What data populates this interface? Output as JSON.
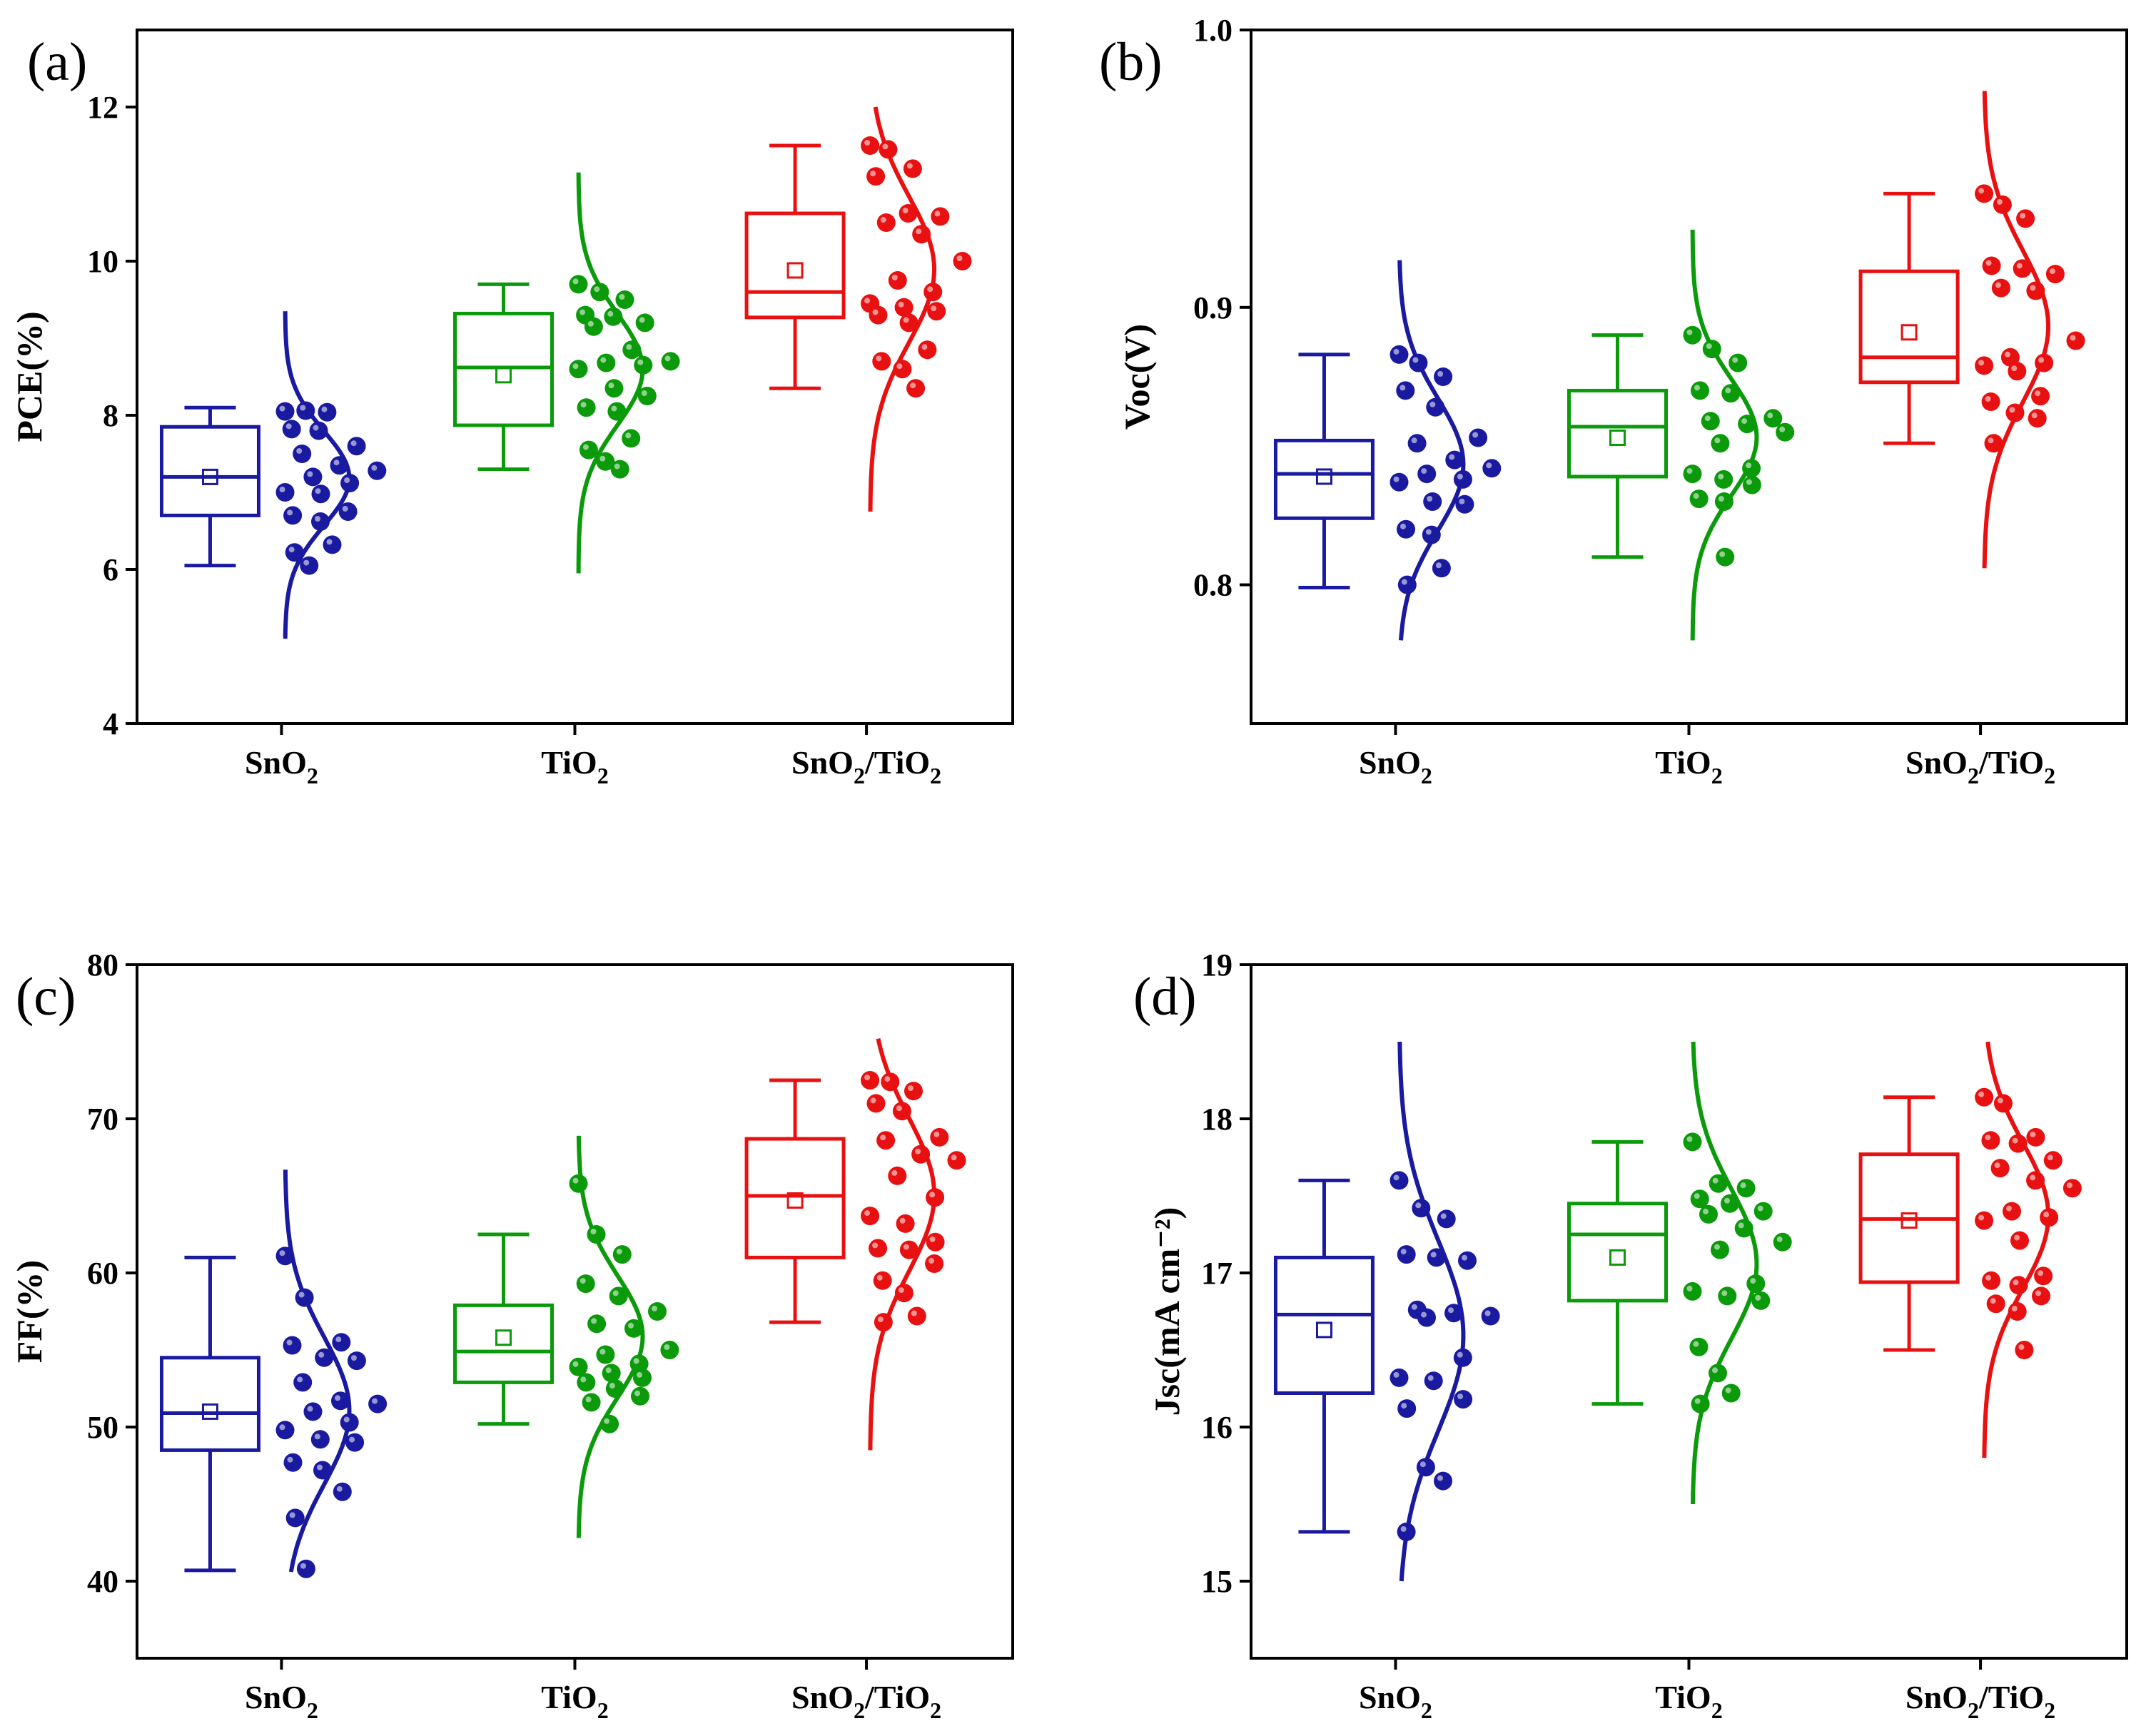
{
  "figure": {
    "panels": [
      "a",
      "b",
      "c",
      "d"
    ]
  },
  "chart_data": [
    {
      "panel": "(a)",
      "type": "box",
      "ylabel": "PCE(%)",
      "ylim": [
        4,
        13
      ],
      "yticks": [
        "4",
        "6",
        "8",
        "10",
        "12"
      ],
      "ytick_values": [
        4,
        6,
        8,
        10,
        12
      ],
      "categories": [
        {
          "label": "SnO",
          "sub": "2",
          "rest": ""
        },
        {
          "label": "TiO",
          "sub": "2",
          "rest": ""
        },
        {
          "label": "SnO",
          "sub": "2",
          "rest": "/TiO",
          "sub2": "2"
        }
      ],
      "series": [
        {
          "name": "SnO2",
          "color": "#1a1aa0",
          "min": 6.05,
          "q1": 6.7,
          "median": 7.2,
          "q3": 7.85,
          "max": 8.1,
          "mean": 7.2,
          "curve_range": [
            5.1,
            9.35
          ],
          "points": [
            8.05,
            8.06,
            8.04,
            7.82,
            7.8,
            7.6,
            7.5,
            7.35,
            7.28,
            7.2,
            7.12,
            7.0,
            6.98,
            6.75,
            6.7,
            6.62,
            6.32,
            6.22,
            6.05
          ]
        },
        {
          "name": "TiO2",
          "color": "#0a9a0a",
          "min": 7.3,
          "q1": 7.87,
          "median": 8.62,
          "q3": 9.32,
          "max": 9.7,
          "mean": 8.52,
          "curve_range": [
            5.95,
            11.15
          ],
          "points": [
            9.7,
            9.6,
            9.5,
            9.3,
            9.28,
            9.2,
            9.15,
            8.85,
            8.7,
            8.68,
            8.65,
            8.6,
            8.35,
            8.25,
            8.1,
            8.05,
            7.7,
            7.55,
            7.4,
            7.3
          ]
        },
        {
          "name": "SnO2/TiO2",
          "color": "#e81010",
          "min": 8.35,
          "q1": 9.27,
          "median": 9.6,
          "q3": 10.62,
          "max": 11.5,
          "mean": 9.88,
          "curve_range": [
            6.75,
            12.0
          ],
          "points": [
            11.5,
            11.45,
            11.2,
            11.1,
            10.62,
            10.58,
            10.5,
            10.35,
            10.0,
            9.75,
            9.6,
            9.45,
            9.4,
            9.35,
            9.3,
            9.2,
            8.85,
            8.7,
            8.6,
            8.35
          ]
        }
      ]
    },
    {
      "panel": "(b)",
      "type": "box",
      "ylabel": "Voc(V)",
      "ylim": [
        0.75,
        1.0
      ],
      "yticks": [
        "0.8",
        "0.9",
        "1.0"
      ],
      "ytick_values": [
        0.8,
        0.9,
        1.0
      ],
      "categories": [
        {
          "label": "SnO",
          "sub": "2",
          "rest": ""
        },
        {
          "label": "TiO",
          "sub": "2",
          "rest": ""
        },
        {
          "label": "SnO",
          "sub": "2",
          "rest": "/TiO",
          "sub2": "2"
        }
      ],
      "series": [
        {
          "name": "SnO2",
          "color": "#1a1aa0",
          "min": 0.799,
          "q1": 0.824,
          "median": 0.84,
          "q3": 0.852,
          "max": 0.883,
          "mean": 0.839,
          "curve_range": [
            0.78,
            0.917
          ],
          "points": [
            0.883,
            0.88,
            0.875,
            0.87,
            0.864,
            0.853,
            0.851,
            0.845,
            0.842,
            0.84,
            0.838,
            0.837,
            0.83,
            0.829,
            0.82,
            0.818,
            0.806,
            0.8
          ]
        },
        {
          "name": "TiO2",
          "color": "#0a9a0a",
          "min": 0.81,
          "q1": 0.839,
          "median": 0.857,
          "q3": 0.87,
          "max": 0.89,
          "mean": 0.853,
          "curve_range": [
            0.78,
            0.928
          ],
          "points": [
            0.89,
            0.885,
            0.88,
            0.87,
            0.869,
            0.86,
            0.859,
            0.858,
            0.855,
            0.851,
            0.842,
            0.84,
            0.838,
            0.836,
            0.831,
            0.83,
            0.81
          ]
        },
        {
          "name": "SnO2/TiO2",
          "color": "#e81010",
          "min": 0.851,
          "q1": 0.873,
          "median": 0.882,
          "q3": 0.913,
          "max": 0.941,
          "mean": 0.891,
          "curve_range": [
            0.806,
            0.978
          ],
          "points": [
            0.941,
            0.937,
            0.932,
            0.915,
            0.914,
            0.912,
            0.907,
            0.906,
            0.888,
            0.882,
            0.88,
            0.879,
            0.877,
            0.868,
            0.866,
            0.862,
            0.86,
            0.851
          ]
        }
      ]
    },
    {
      "panel": "(c)",
      "type": "box",
      "ylabel": "FF(%)",
      "ylim": [
        35,
        80
      ],
      "yticks": [
        "40",
        "50",
        "60",
        "70",
        "80"
      ],
      "ytick_values": [
        40,
        50,
        60,
        70,
        80
      ],
      "categories": [
        {
          "label": "SnO",
          "sub": "2",
          "rest": ""
        },
        {
          "label": "TiO",
          "sub": "2",
          "rest": ""
        },
        {
          "label": "SnO",
          "sub": "2",
          "rest": "/TiO",
          "sub2": "2"
        }
      ],
      "series": [
        {
          "name": "SnO2",
          "color": "#1a1aa0",
          "min": 40.7,
          "q1": 48.5,
          "median": 50.9,
          "q3": 54.5,
          "max": 61.0,
          "mean": 51.0,
          "curve_range": [
            40.6,
            66.7
          ],
          "points": [
            61.1,
            58.4,
            55.5,
            55.3,
            54.5,
            54.3,
            52.9,
            51.7,
            51.5,
            51.0,
            50.3,
            49.8,
            49.2,
            49.0,
            47.7,
            47.2,
            45.8,
            44.1,
            40.8
          ]
        },
        {
          "name": "TiO2",
          "color": "#0a9a0a",
          "min": 50.2,
          "q1": 52.9,
          "median": 54.9,
          "q3": 57.9,
          "max": 62.5,
          "mean": 55.8,
          "curve_range": [
            42.8,
            68.9
          ],
          "points": [
            65.8,
            62.5,
            61.2,
            59.3,
            58.5,
            57.5,
            56.7,
            56.4,
            55.0,
            54.7,
            54.1,
            53.9,
            53.5,
            53.2,
            52.9,
            52.5,
            52.0,
            51.6,
            50.2
          ]
        },
        {
          "name": "SnO2/TiO2",
          "color": "#e81010",
          "min": 56.8,
          "q1": 61.0,
          "median": 65.0,
          "q3": 68.7,
          "max": 72.5,
          "mean": 64.7,
          "curve_range": [
            48.5,
            75.2
          ],
          "points": [
            72.5,
            72.4,
            71.8,
            71.0,
            70.5,
            68.8,
            68.6,
            67.7,
            67.3,
            66.3,
            64.9,
            63.7,
            63.2,
            62.0,
            61.6,
            61.5,
            60.6,
            59.5,
            58.7,
            57.2,
            56.8
          ]
        }
      ]
    },
    {
      "panel": "(d)",
      "type": "box",
      "ylabel": "Jsc(mA cm⁻²)",
      "ylim": [
        14.5,
        19
      ],
      "yticks": [
        "15",
        "16",
        "17",
        "18",
        "19"
      ],
      "ytick_values": [
        15,
        16,
        17,
        18,
        19
      ],
      "categories": [
        {
          "label": "SnO",
          "sub": "2",
          "rest": ""
        },
        {
          "label": "TiO",
          "sub": "2",
          "rest": ""
        },
        {
          "label": "SnO",
          "sub": "2",
          "rest": "/TiO",
          "sub2": "2"
        }
      ],
      "series": [
        {
          "name": "SnO2",
          "color": "#1a1aa0",
          "min": 15.32,
          "q1": 16.22,
          "median": 16.73,
          "q3": 17.1,
          "max": 17.6,
          "mean": 16.63,
          "curve_range": [
            15.0,
            18.5
          ],
          "points": [
            17.6,
            17.42,
            17.35,
            17.12,
            17.1,
            17.08,
            16.76,
            16.74,
            16.72,
            16.71,
            16.45,
            16.32,
            16.3,
            16.18,
            16.12,
            15.74,
            15.65,
            15.32
          ]
        },
        {
          "name": "TiO2",
          "color": "#0a9a0a",
          "min": 16.15,
          "q1": 16.82,
          "median": 17.25,
          "q3": 17.45,
          "max": 17.85,
          "mean": 17.1,
          "curve_range": [
            15.5,
            18.5
          ],
          "points": [
            17.85,
            17.58,
            17.55,
            17.48,
            17.45,
            17.4,
            17.38,
            17.29,
            17.2,
            17.15,
            16.93,
            16.88,
            16.85,
            16.82,
            16.52,
            16.35,
            16.22,
            16.15
          ]
        },
        {
          "name": "SnO2/TiO2",
          "color": "#e81010",
          "min": 16.5,
          "q1": 16.94,
          "median": 17.35,
          "q3": 17.77,
          "max": 18.14,
          "mean": 17.34,
          "curve_range": [
            15.8,
            18.5
          ],
          "points": [
            18.14,
            18.1,
            17.88,
            17.86,
            17.84,
            17.73,
            17.68,
            17.6,
            17.55,
            17.4,
            17.36,
            17.34,
            17.21,
            16.98,
            16.95,
            16.92,
            16.85,
            16.8,
            16.75,
            16.5
          ]
        }
      ]
    }
  ]
}
